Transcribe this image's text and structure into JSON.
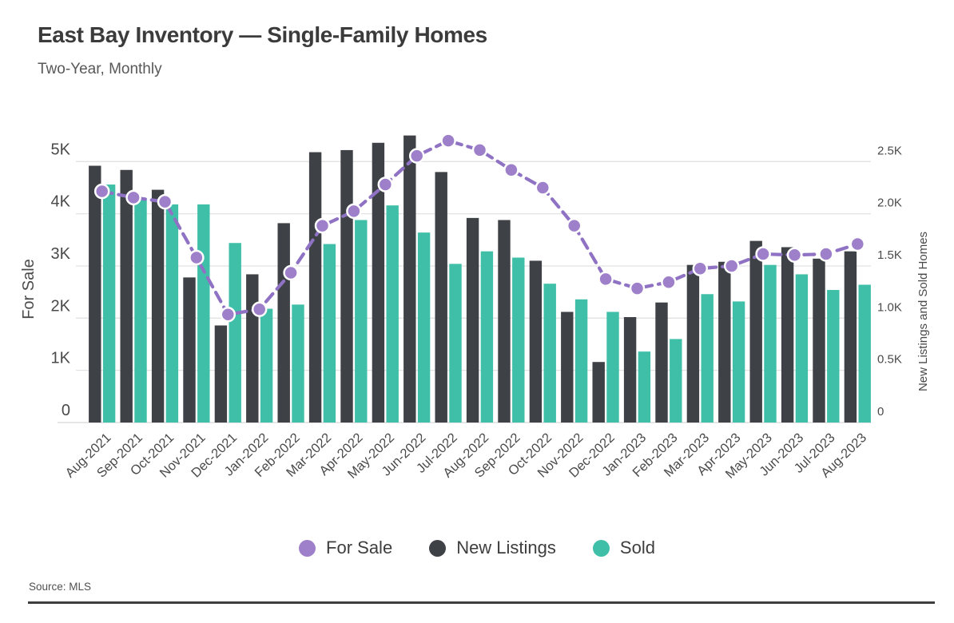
{
  "header": {
    "title": "East Bay Inventory — Single-Family Homes",
    "subtitle": "Two-Year, Monthly"
  },
  "footer": {
    "source": "Source: MLS"
  },
  "chart_data": {
    "type": "combo-bar-line",
    "grid": true,
    "legend_position": "bottom-center",
    "categories": [
      "Aug-2021",
      "Sep-2021",
      "Oct-2021",
      "Nov-2021",
      "Dec-2021",
      "Jan-2022",
      "Feb-2022",
      "Mar-2022",
      "Apr-2022",
      "May-2022",
      "Jun-2022",
      "Jul-2022",
      "Aug-2022",
      "Sep-2022",
      "Oct-2022",
      "Nov-2022",
      "Dec-2022",
      "Jan-2023",
      "Feb-2023",
      "Mar-2023",
      "Apr-2023",
      "May-2023",
      "Jun-2023",
      "Jul-2023",
      "Aug-2023"
    ],
    "series": [
      {
        "name": "For Sale",
        "type": "line",
        "axis": "left",
        "style": "dashed-with-markers",
        "color": "#9e7fc9",
        "line_color": "#8f72c4",
        "marker_stroke": "#ffffff",
        "values": [
          4430,
          4310,
          4230,
          3160,
          2070,
          2170,
          2870,
          3770,
          4050,
          4560,
          5110,
          5400,
          5220,
          4840,
          4500,
          3770,
          2750,
          2570,
          2690,
          2950,
          3000,
          3230,
          3210,
          3230,
          3420
        ]
      },
      {
        "name": "New Listings",
        "type": "bar",
        "axis": "right",
        "color": "#3e4146",
        "values": [
          2460,
          2420,
          2230,
          1390,
          930,
          1420,
          1910,
          2590,
          2610,
          2680,
          2750,
          2400,
          1960,
          1940,
          1550,
          1060,
          580,
          1010,
          1150,
          1510,
          1540,
          1740,
          1680,
          1570,
          1640
        ]
      },
      {
        "name": "Sold",
        "type": "bar",
        "axis": "right",
        "color": "#3fbfa7",
        "values": [
          2280,
          2150,
          2090,
          2090,
          1720,
          1090,
          1130,
          1710,
          1940,
          2080,
          1820,
          1520,
          1640,
          1580,
          1330,
          1180,
          1060,
          680,
          800,
          1230,
          1160,
          1510,
          1420,
          1270,
          1320
        ]
      }
    ],
    "left_axis": {
      "label": "For Sale",
      "min": 0,
      "max": 5000,
      "tick_values": [
        0,
        1000,
        2000,
        3000,
        4000,
        5000
      ],
      "ticks": [
        "0",
        "1K",
        "2K",
        "3K",
        "4K",
        "5K"
      ]
    },
    "right_axis": {
      "label": "New Listings and Sold Homes",
      "min": 0,
      "max": 2500,
      "tick_values": [
        0,
        500,
        1000,
        1500,
        2000,
        2500
      ],
      "ticks": [
        "0",
        "0.5K",
        "1.0K",
        "1.5K",
        "2.0K",
        "2.5K"
      ]
    },
    "colors": {
      "grid_line": "#e2e2e2",
      "baseline": "#d6d6d6",
      "axis_text": "#4a4a4a",
      "x_label_text": "#4a4a4a"
    }
  }
}
